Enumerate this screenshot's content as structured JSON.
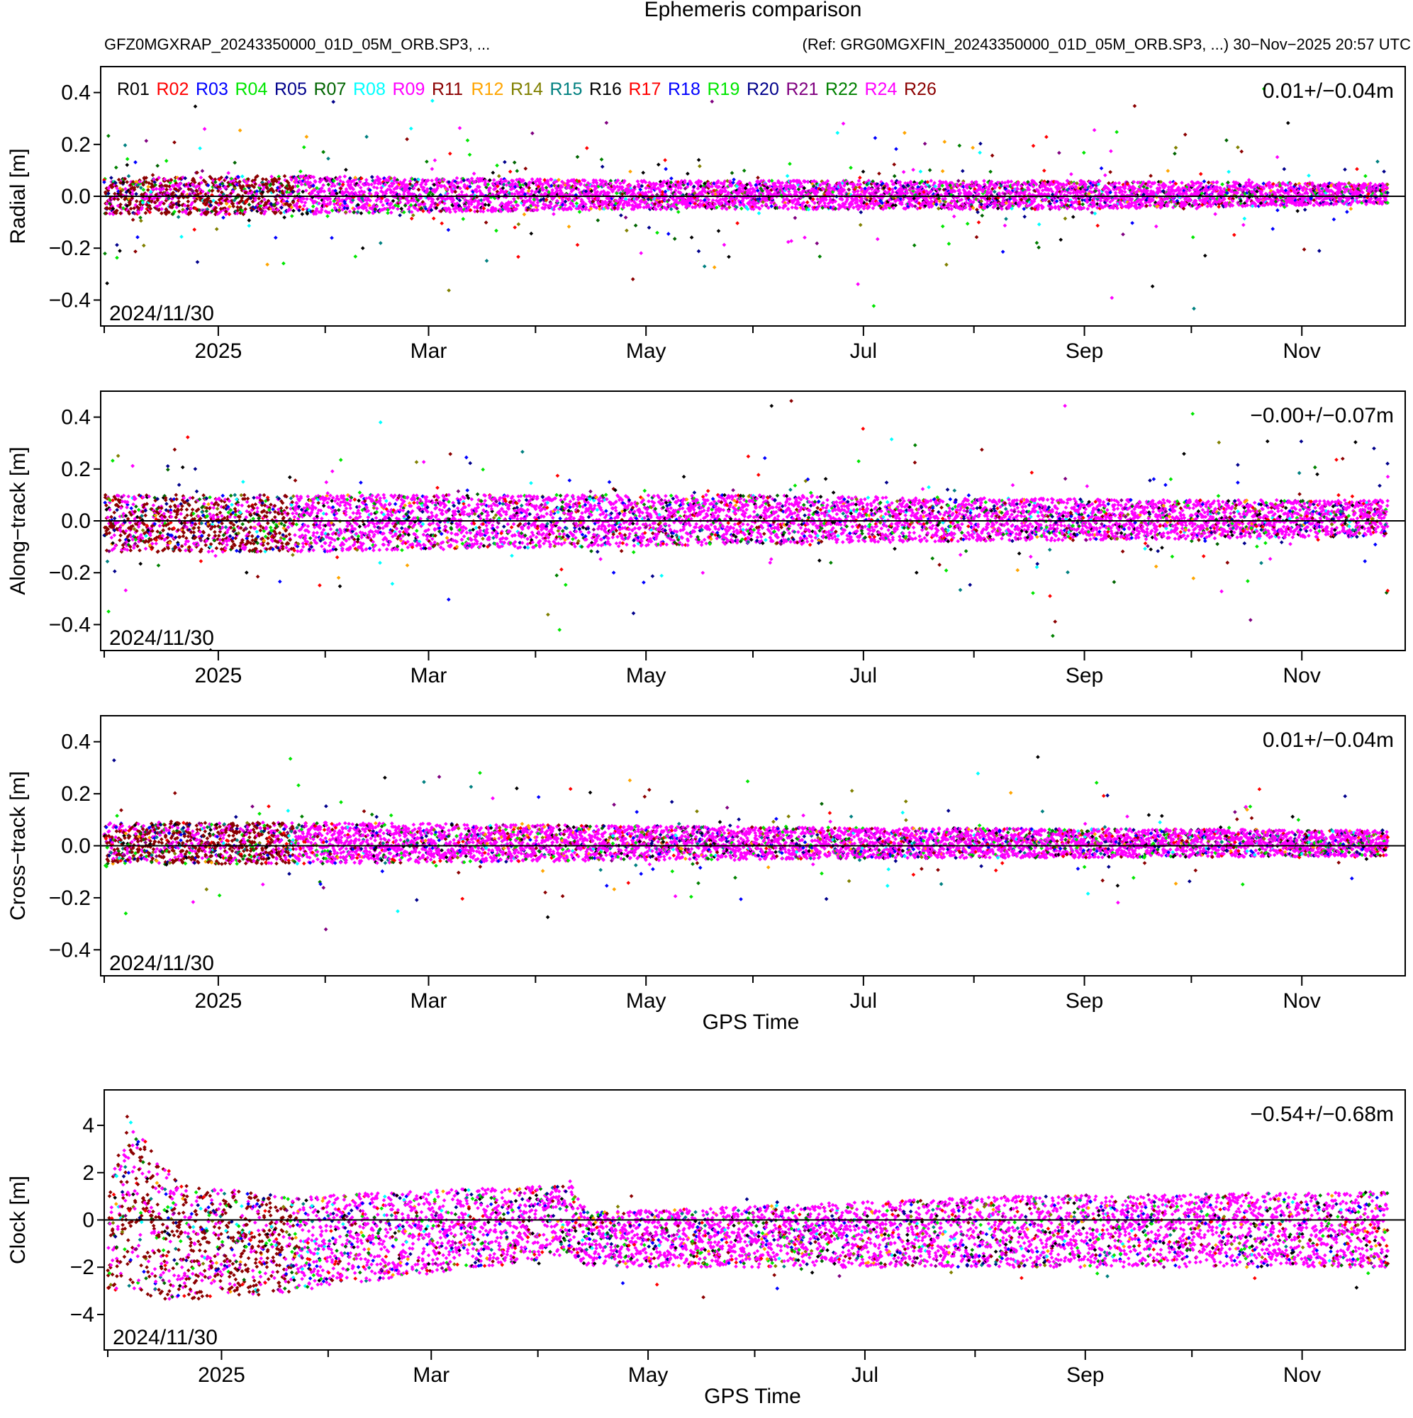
{
  "chart_data": {
    "type": "scatter",
    "title": "Ephemeris comparison",
    "subtitle_left": "GFZ0MGXRAP_20243350000_01D_05M_ORB.SP3, ...",
    "subtitle_right": "(Ref: GRG0MGXFIN_20243350000_01D_05M_ORB.SP3, ...) 30−Nov−2025 20:57 UTC",
    "xlabel": "GPS Time",
    "x_unit": "days since 2024-11-30",
    "xlim": [
      -1,
      365
    ],
    "x_ticks": [
      {
        "label": "2025",
        "x": 32
      },
      {
        "label": "Mar",
        "x": 91
      },
      {
        "label": "May",
        "x": 152
      },
      {
        "label": "Jul",
        "x": 213
      },
      {
        "label": "Sep",
        "x": 275
      },
      {
        "label": "Nov",
        "x": 336
      }
    ],
    "x_minor_ticks": [
      0,
      62,
      121,
      182,
      244,
      305
    ],
    "legend": [
      {
        "name": "R01",
        "color": "#000000"
      },
      {
        "name": "R02",
        "color": "#ff0000"
      },
      {
        "name": "R03",
        "color": "#0000ff"
      },
      {
        "name": "R04",
        "color": "#00e600"
      },
      {
        "name": "R05",
        "color": "#00008b"
      },
      {
        "name": "R07",
        "color": "#006400"
      },
      {
        "name": "R08",
        "color": "#00ffff"
      },
      {
        "name": "R09",
        "color": "#ff00ff"
      },
      {
        "name": "R11",
        "color": "#8b0000"
      },
      {
        "name": "R12",
        "color": "#ffa500"
      },
      {
        "name": "R14",
        "color": "#808000"
      },
      {
        "name": "R15",
        "color": "#008080"
      },
      {
        "name": "R16",
        "color": "#000000"
      },
      {
        "name": "R17",
        "color": "#ff0000"
      },
      {
        "name": "R18",
        "color": "#0000ff"
      },
      {
        "name": "R19",
        "color": "#00e600"
      },
      {
        "name": "R20",
        "color": "#00008b"
      },
      {
        "name": "R21",
        "color": "#800080"
      },
      {
        "name": "R22",
        "color": "#008000"
      },
      {
        "name": "R24",
        "color": "#ff00ff"
      },
      {
        "name": "R26",
        "color": "#8b0000"
      }
    ],
    "panels": [
      {
        "key": "radial",
        "ylabel": "Radial [m]",
        "ylim": [
          -0.5,
          0.5
        ],
        "yticks": [
          -0.4,
          -0.2,
          0.0,
          0.2,
          0.4
        ],
        "ytick_labels": [
          "−0.4",
          "−0.2",
          "0.0",
          "0.2",
          "0.4"
        ],
        "stats": "0.01+/−0.04m",
        "date": "2024/11/30",
        "show_xlabel": false,
        "noise": {
          "early_end": 53,
          "early_sigma": 0.06,
          "late_sigma": 0.035,
          "outlier_rate": 0.06,
          "outlier_sigma": 0.13
        },
        "envelope": [
          {
            "x": 0,
            "lo": -0.07,
            "hi": 0.07
          },
          {
            "x": 53,
            "lo": -0.07,
            "hi": 0.08
          },
          {
            "x": 150,
            "lo": -0.05,
            "hi": 0.06
          },
          {
            "x": 270,
            "lo": -0.05,
            "hi": 0.06
          },
          {
            "x": 360,
            "lo": -0.03,
            "hi": 0.05
          }
        ]
      },
      {
        "key": "along_track",
        "ylabel": "Along−track [m]",
        "ylim": [
          -0.5,
          0.5
        ],
        "yticks": [
          -0.4,
          -0.2,
          0.0,
          0.2,
          0.4
        ],
        "ytick_labels": [
          "−0.4",
          "−0.2",
          "0.0",
          "0.2",
          "0.4"
        ],
        "stats": "−0.00+/−0.07m",
        "date": "2024/11/30",
        "show_xlabel": false,
        "noise": {
          "early_end": 53,
          "early_sigma": 0.09,
          "late_sigma": 0.06,
          "outlier_rate": 0.06,
          "outlier_sigma": 0.15
        },
        "envelope": [
          {
            "x": 0,
            "lo": -0.12,
            "hi": 0.1
          },
          {
            "x": 53,
            "lo": -0.12,
            "hi": 0.1
          },
          {
            "x": 180,
            "lo": -0.09,
            "hi": 0.1
          },
          {
            "x": 300,
            "lo": -0.07,
            "hi": 0.08
          },
          {
            "x": 360,
            "lo": -0.06,
            "hi": 0.08
          }
        ]
      },
      {
        "key": "cross_track",
        "ylabel": "Cross−track [m]",
        "ylim": [
          -0.5,
          0.5
        ],
        "yticks": [
          -0.4,
          -0.2,
          0.0,
          0.2,
          0.4
        ],
        "ytick_labels": [
          "−0.4",
          "−0.2",
          "0.0",
          "0.2",
          "0.4"
        ],
        "stats": "0.01+/−0.04m",
        "date": "2024/11/30",
        "show_xlabel": true,
        "noise": {
          "early_end": 53,
          "early_sigma": 0.07,
          "late_sigma": 0.035,
          "outlier_rate": 0.05,
          "outlier_sigma": 0.12
        },
        "envelope": [
          {
            "x": 0,
            "lo": -0.07,
            "hi": 0.09
          },
          {
            "x": 53,
            "lo": -0.07,
            "hi": 0.09
          },
          {
            "x": 200,
            "lo": -0.05,
            "hi": 0.07
          },
          {
            "x": 360,
            "lo": -0.04,
            "hi": 0.06
          }
        ]
      },
      {
        "key": "clock",
        "ylabel": "Clock [m]",
        "ylim": [
          -5.5,
          5.5
        ],
        "yticks": [
          -4,
          -2,
          0,
          2,
          4
        ],
        "ytick_labels": [
          "−4",
          "−2",
          "0",
          "2",
          "4"
        ],
        "stats": "−0.54+/−0.68m",
        "date": "2024/11/30",
        "show_xlabel": true,
        "noise": {
          "early_end": 53,
          "early_sigma": 0.8,
          "late_sigma": 0.5,
          "outlier_rate": 0.04,
          "outlier_sigma": 1.0
        },
        "envelope": [
          {
            "x": 0,
            "lo": -3.0,
            "hi": 1.0
          },
          {
            "x": 5,
            "lo": -3.0,
            "hi": 4.5
          },
          {
            "x": 20,
            "lo": -3.5,
            "hi": 1.5
          },
          {
            "x": 53,
            "lo": -3.0,
            "hi": 1.0
          },
          {
            "x": 130,
            "lo": -1.5,
            "hi": 1.5
          },
          {
            "x": 135,
            "lo": -2.0,
            "hi": 0.3
          },
          {
            "x": 250,
            "lo": -2.0,
            "hi": 1.0
          },
          {
            "x": 360,
            "lo": -2.0,
            "hi": 1.2
          }
        ]
      }
    ]
  }
}
